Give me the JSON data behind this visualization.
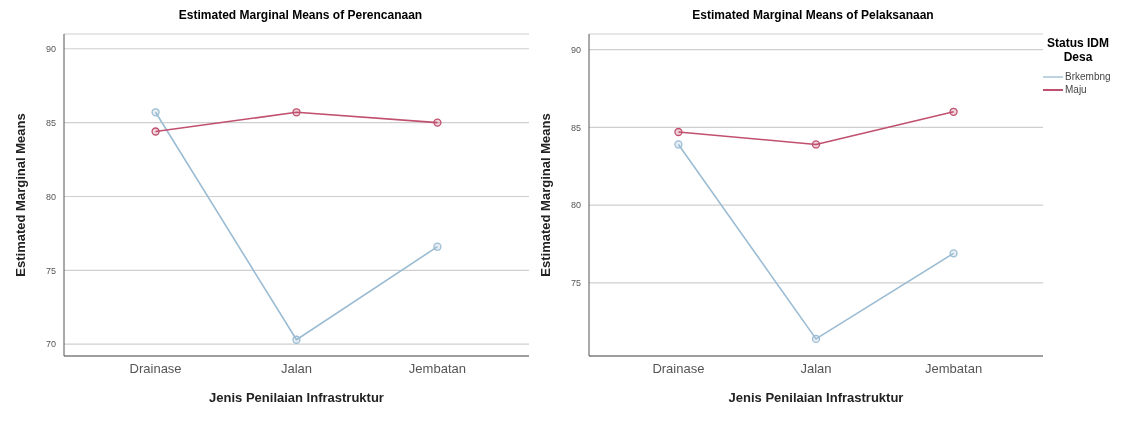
{
  "chart_data": [
    {
      "type": "line",
      "title": "Estimated Marginal Means of Perencanaan",
      "xlabel": "Jenis Penilaian Infrastruktur",
      "ylabel": "Estimated Marginal Means",
      "categories": [
        "Drainase",
        "Jalan",
        "Jembatan"
      ],
      "series": [
        {
          "color": "#9bbcd3",
          "values": [
            85.7,
            70.3,
            76.6
          ]
        },
        {
          "color": "#c0506e",
          "values": [
            84.4,
            85.7,
            85.0
          ]
        }
      ],
      "ylim": [
        69.2,
        91
      ],
      "yticks": [
        70,
        75,
        80,
        85,
        90
      ],
      "grid": "y",
      "marker": "circle",
      "line_style": "solid",
      "legend": false
    },
    {
      "type": "line",
      "title": "Estimated Marginal Means of Pelaksanaan",
      "xlabel": "Jenis Penilaian Infrastruktur",
      "ylabel": "Estimated Marginal Means",
      "legend_title": "Status IDM Desa",
      "categories": [
        "Drainase",
        "Jalan",
        "Jembatan"
      ],
      "series": [
        {
          "name": "Brkembng",
          "color": "#9bbcd3",
          "values": [
            83.9,
            71.4,
            76.9
          ]
        },
        {
          "name": "Maju",
          "color": "#c0506e",
          "values": [
            84.7,
            83.9,
            86.0
          ]
        }
      ],
      "ylim": [
        70.3,
        91
      ],
      "yticks": [
        75,
        80,
        85,
        90
      ],
      "grid": "y",
      "marker": "circle",
      "line_style": "solid",
      "legend": "top right"
    }
  ]
}
